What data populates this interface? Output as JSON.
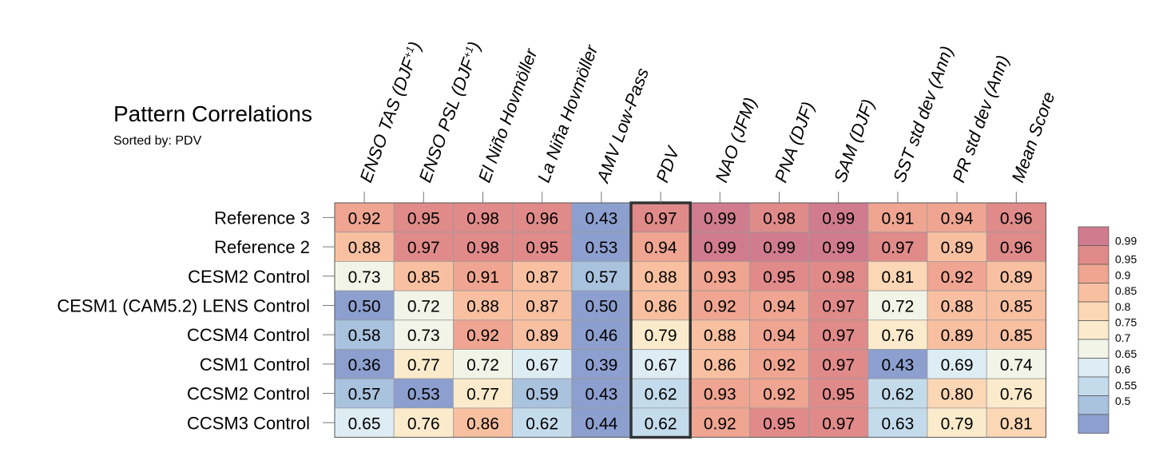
{
  "title": "Pattern Correlations",
  "subtitle": "Sorted by: PDV",
  "chart_data": {
    "type": "heatmap",
    "columns": [
      "ENSO TAS (DJF+1)",
      "ENSO PSL (DJF+1)",
      "El Niño Hovmöller",
      "La Niña Hovmöller",
      "AMV Low-Pass",
      "PDV",
      "NAO (JFM)",
      "PNA (DJF)",
      "SAM (DJF)",
      "SST std dev (Ann)",
      "PR std dev (Ann)",
      "Mean Score"
    ],
    "rows": [
      "Reference 3",
      "Reference 2",
      "CESM2 Control",
      "CESM1 (CAM5.2) LENS Control",
      "CCSM4 Control",
      "CSM1 Control",
      "CCSM2 Control",
      "CCSM3 Control"
    ],
    "values": [
      [
        "0.92",
        "0.95",
        "0.98",
        "0.96",
        "0.43",
        "0.97",
        "0.99",
        "0.98",
        "0.99",
        "0.91",
        "0.94",
        "0.96"
      ],
      [
        "0.88",
        "0.97",
        "0.98",
        "0.95",
        "0.53",
        "0.94",
        "0.99",
        "0.99",
        "0.99",
        "0.97",
        "0.89",
        "0.96"
      ],
      [
        "0.73",
        "0.85",
        "0.91",
        "0.87",
        "0.57",
        "0.88",
        "0.93",
        "0.95",
        "0.98",
        "0.81",
        "0.92",
        "0.89"
      ],
      [
        "0.50",
        "0.72",
        "0.88",
        "0.87",
        "0.50",
        "0.86",
        "0.92",
        "0.94",
        "0.97",
        "0.72",
        "0.88",
        "0.85"
      ],
      [
        "0.58",
        "0.73",
        "0.92",
        "0.89",
        "0.46",
        "0.79",
        "0.88",
        "0.94",
        "0.97",
        "0.76",
        "0.89",
        "0.85"
      ],
      [
        "0.36",
        "0.77",
        "0.72",
        "0.67",
        "0.39",
        "0.67",
        "0.86",
        "0.92",
        "0.97",
        "0.43",
        "0.69",
        "0.74"
      ],
      [
        "0.57",
        "0.53",
        "0.77",
        "0.59",
        "0.43",
        "0.62",
        "0.93",
        "0.92",
        "0.95",
        "0.62",
        "0.80",
        "0.76"
      ],
      [
        "0.65",
        "0.76",
        "0.86",
        "0.62",
        "0.44",
        "0.62",
        "0.92",
        "0.95",
        "0.97",
        "0.63",
        "0.79",
        "0.81"
      ]
    ],
    "highlighted_column": "PDV",
    "colorbar": {
      "labels": [
        "0.99",
        "0.95",
        "0.9",
        "0.85",
        "0.8",
        "0.75",
        "0.7",
        "0.65",
        "0.6",
        "0.55",
        "0.5"
      ],
      "colors": [
        "#d07c8e",
        "#e18a8a",
        "#efa591",
        "#f8c0a1",
        "#fcd7b5",
        "#fbebcc",
        "#f2f4e8",
        "#deecf3",
        "#c4dbec",
        "#a9c2de",
        "#8d9fcf"
      ]
    }
  }
}
